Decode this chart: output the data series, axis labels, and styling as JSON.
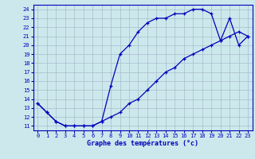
{
  "xlabel": "Graphe des températures (°c)",
  "bg_color": "#cce8ec",
  "line_color": "#0000bb",
  "grid_color": "#aabbcc",
  "xmin": 0,
  "xmax": 23,
  "ymin": 11,
  "ymax": 24,
  "line1_x": [
    0,
    1,
    2,
    3,
    4,
    5,
    6,
    7,
    8,
    9,
    10,
    11,
    12,
    13,
    14,
    15,
    16,
    17,
    18,
    19,
    20,
    21,
    22,
    23
  ],
  "line1_y": [
    13.5,
    12.5,
    11.5,
    11.0,
    11.0,
    11.0,
    11.0,
    11.5,
    15.5,
    19.0,
    20.0,
    21.5,
    22.5,
    23.0,
    23.0,
    23.5,
    23.5,
    24.0,
    24.0,
    23.5,
    20.5,
    23.0,
    20.0,
    21.0
  ],
  "line2_x": [
    0,
    1,
    2,
    3,
    4,
    5,
    6,
    7,
    8,
    9,
    10,
    11,
    12,
    13,
    14,
    15,
    16,
    17,
    18,
    19,
    20,
    21,
    22,
    23
  ],
  "line2_y": [
    13.5,
    12.5,
    11.5,
    11.0,
    11.0,
    11.0,
    11.0,
    11.5,
    12.0,
    12.5,
    13.5,
    14.0,
    15.0,
    16.0,
    17.0,
    17.5,
    18.5,
    19.0,
    19.5,
    20.0,
    20.5,
    21.0,
    21.5,
    21.0
  ]
}
